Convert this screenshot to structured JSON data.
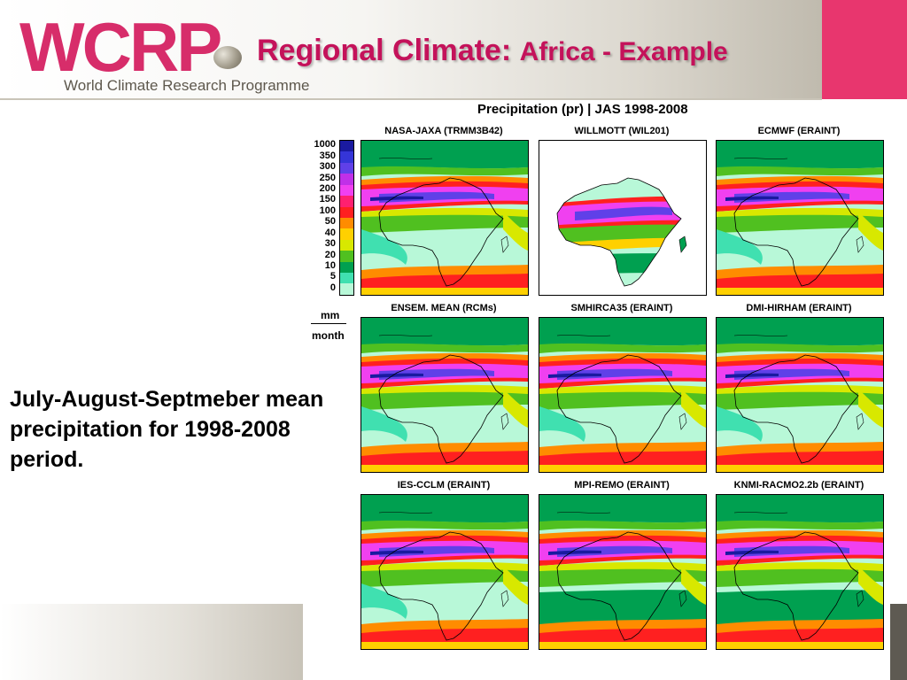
{
  "header": {
    "logo": "WCRP",
    "logo_subtitle": "World Climate Research Programme",
    "title_main": "Regional Climate:",
    "title_sub": "Africa - Example"
  },
  "description": "July-August-Septmeber mean precipitation for 1998-2008 period.",
  "figure": {
    "title": "Precipitation (pr) | JAS  1998-2008",
    "units_top": "mm",
    "units_bottom": "month",
    "colorbar": [
      {
        "label": "1000",
        "color": "#1a1aa0"
      },
      {
        "label": "350",
        "color": "#3535d8"
      },
      {
        "label": "300",
        "color": "#6040e8"
      },
      {
        "label": "250",
        "color": "#c030e8"
      },
      {
        "label": "200",
        "color": "#f040f0"
      },
      {
        "label": "150",
        "color": "#ff2070"
      },
      {
        "label": "100",
        "color": "#ff2020"
      },
      {
        "label": "50",
        "color": "#ff8c00"
      },
      {
        "label": "40",
        "color": "#ffd000"
      },
      {
        "label": "30",
        "color": "#d8e800"
      },
      {
        "label": "20",
        "color": "#50c020"
      },
      {
        "label": "10",
        "color": "#00a050"
      },
      {
        "label": "5",
        "color": "#40e0b0"
      },
      {
        "label": "0",
        "color": "#b8f8d8"
      }
    ],
    "panels": [
      {
        "label": "NASA-JAXA (TRMM3B42)"
      },
      {
        "label": "WILLMOTT (WIL201)"
      },
      {
        "label": "ECMWF (ERAINT)"
      },
      {
        "label": "ENSEM. MEAN (RCMs)"
      },
      {
        "label": "SMHIRCA35 (ERAINT)"
      },
      {
        "label": "DMI-HIRHAM (ERAINT)"
      },
      {
        "label": "IES-CCLM (ERAINT)"
      },
      {
        "label": "MPI-REMO (ERAINT)"
      },
      {
        "label": "KNMI-RACMO2.2b (ERAINT)"
      }
    ]
  }
}
